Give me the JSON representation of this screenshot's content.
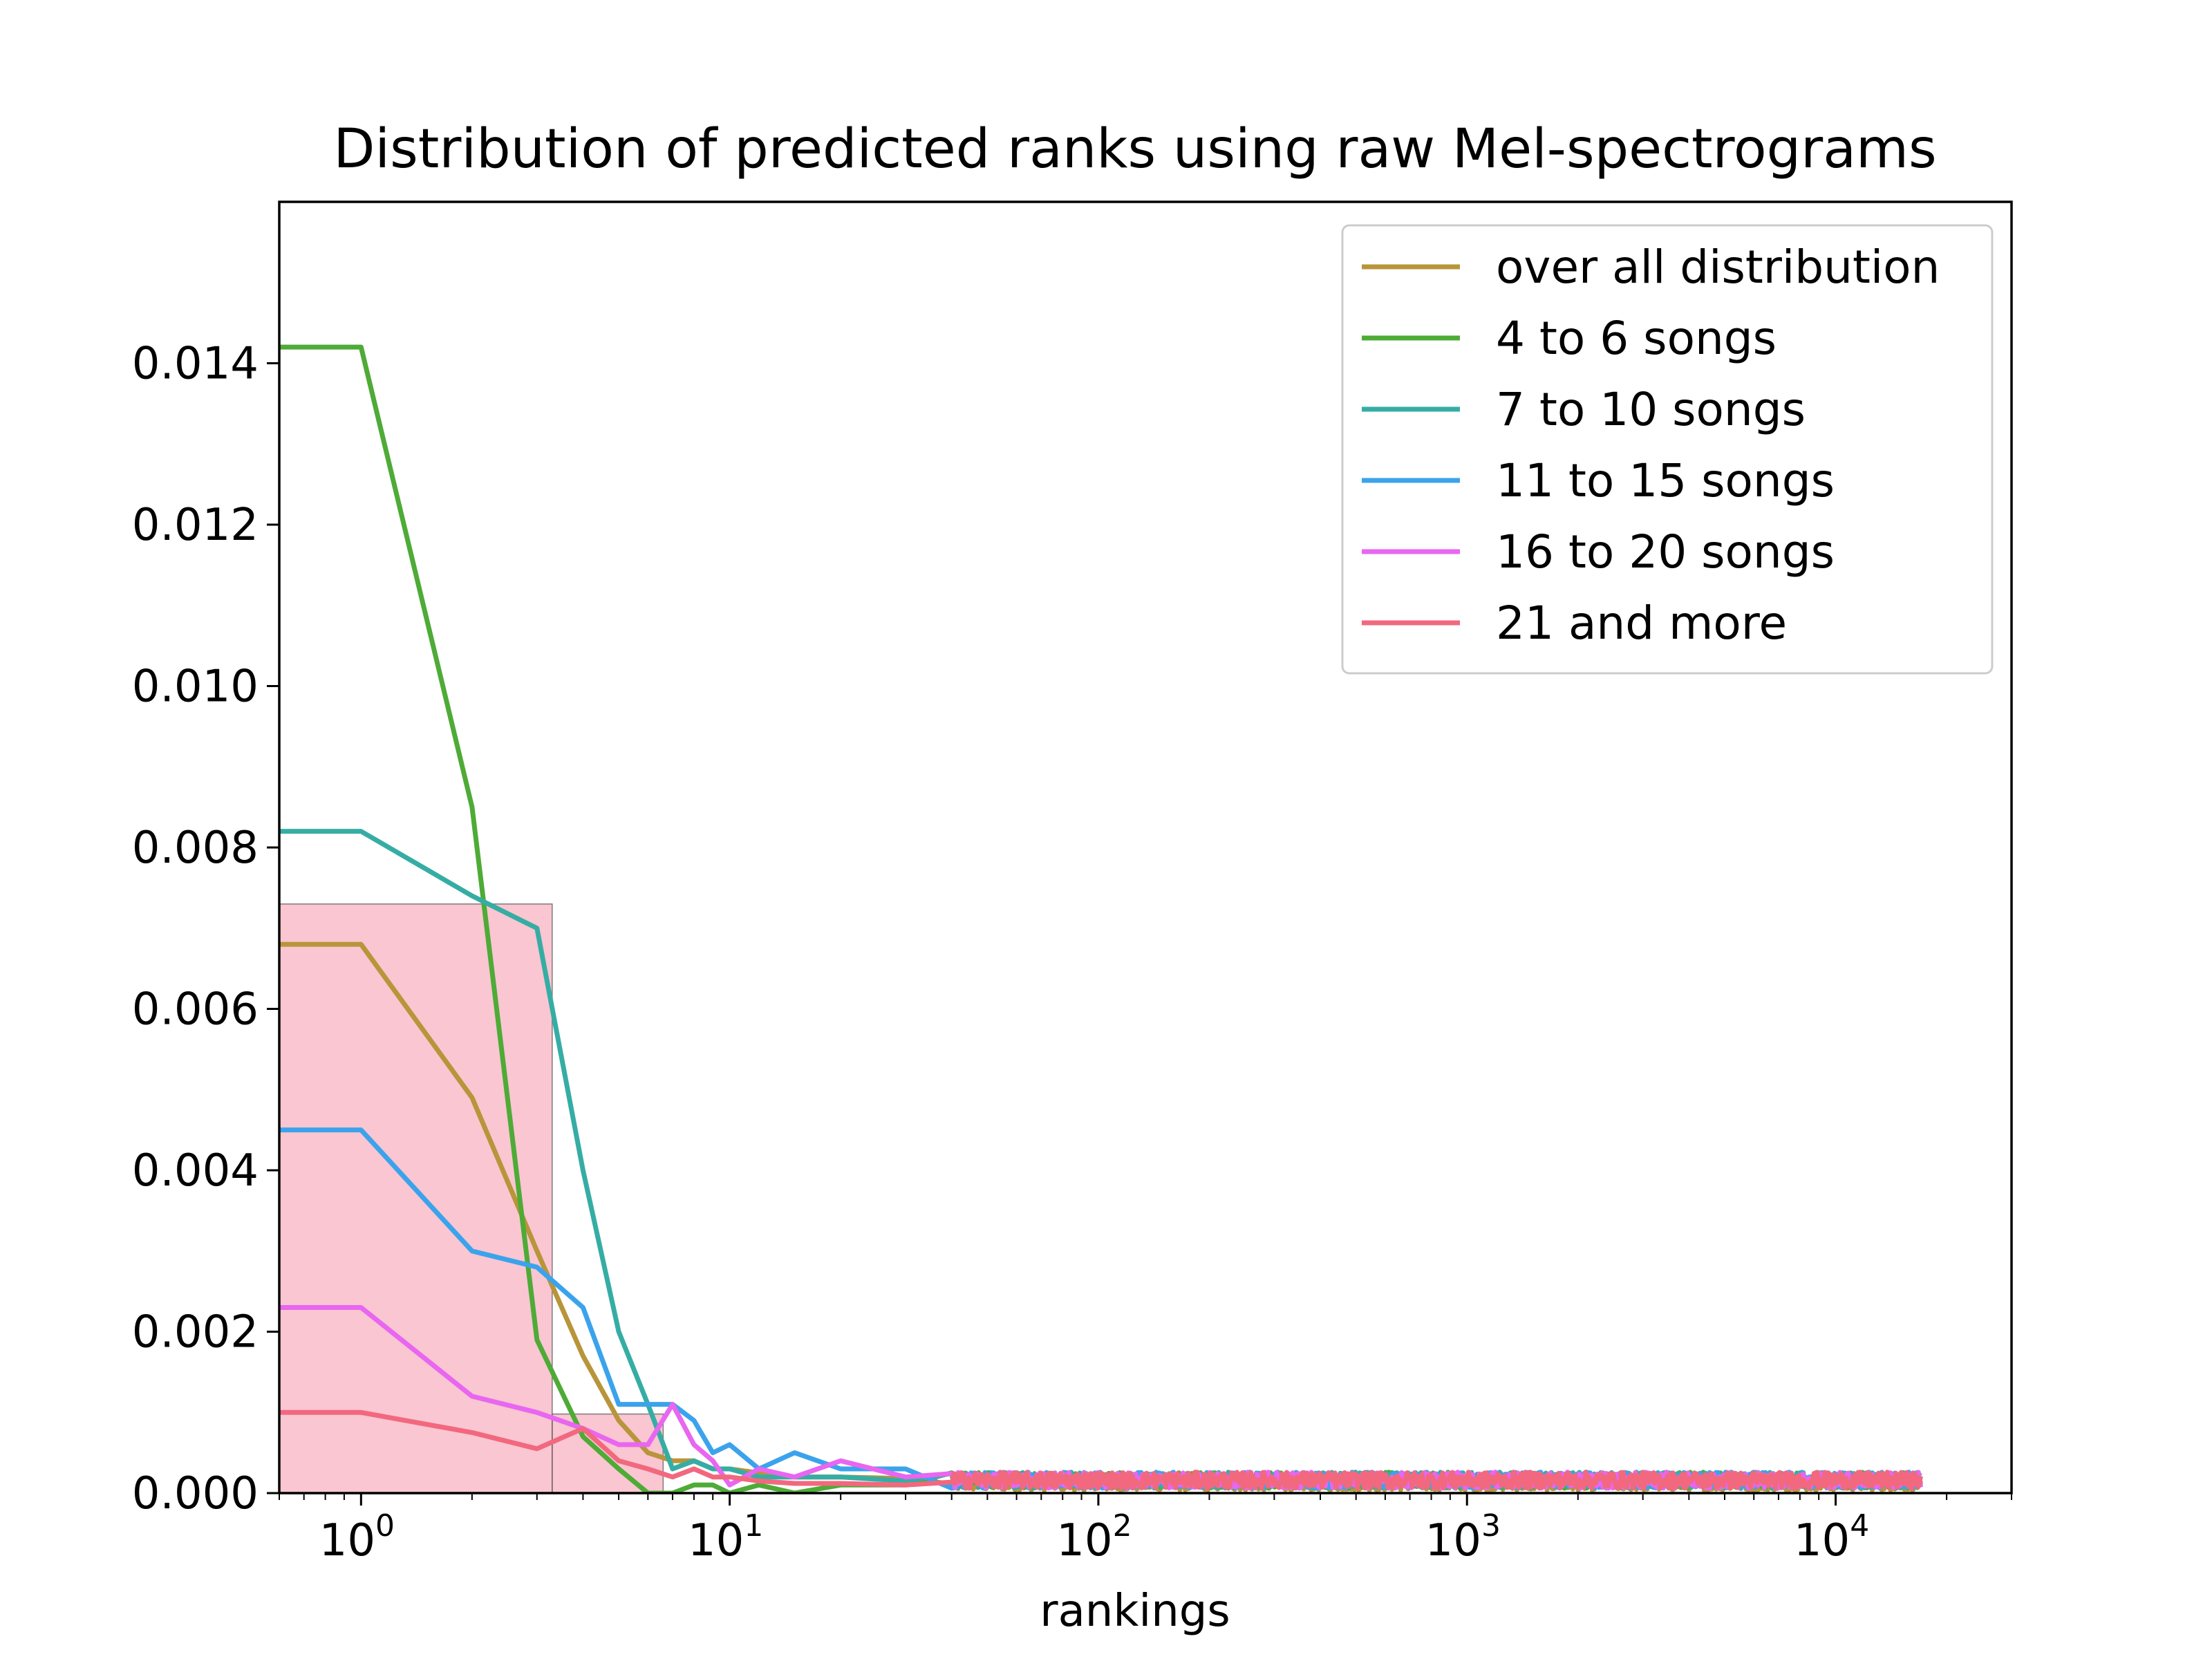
{
  "chart_data": {
    "type": "line",
    "title": "Distribution of predicted ranks using raw Mel-spectrograms",
    "xlabel": "rankings",
    "ylabel": "",
    "xscale": "log",
    "xlim": [
      0.6,
      30000
    ],
    "ylim": [
      0,
      0.016
    ],
    "grid": false,
    "legend_position": "upper-right",
    "x_tick_labels": [
      {
        "value": 1,
        "base": "10",
        "exp": "0"
      },
      {
        "value": 10,
        "base": "10",
        "exp": "1"
      },
      {
        "value": 100,
        "base": "10",
        "exp": "2"
      },
      {
        "value": 1000,
        "base": "10",
        "exp": "3"
      },
      {
        "value": 10000,
        "base": "10",
        "exp": "4"
      }
    ],
    "y_ticks": [
      0,
      0.002,
      0.004,
      0.006,
      0.008,
      0.01,
      0.012,
      0.014
    ],
    "y_tick_labels": [
      "0.000",
      "0.002",
      "0.004",
      "0.006",
      "0.008",
      "0.010",
      "0.012",
      "0.014"
    ],
    "histogram": {
      "color": "#f5a3b5",
      "bins": [
        {
          "x0": 0.6,
          "x1": 3.3,
          "value": 0.0073
        },
        {
          "x0": 3.3,
          "x1": 6.6,
          "value": 0.00098
        }
      ]
    },
    "tail": {
      "x_start": 40,
      "x_end": 17000,
      "noise_max": 0.0004
    },
    "series": [
      {
        "name": "over all distribution",
        "color": "#b8953a",
        "x": [
          0.6,
          1,
          2,
          3,
          4,
          5,
          6,
          7,
          8,
          9,
          10,
          12,
          15,
          20,
          30
        ],
        "y": [
          0.0068,
          0.0068,
          0.0049,
          0.003,
          0.0017,
          0.0009,
          0.0005,
          0.0004,
          0.0004,
          0.0003,
          0.0003,
          0.00025,
          0.0002,
          0.0002,
          0.00018
        ]
      },
      {
        "name": "4 to 6 songs",
        "color": "#4eab36",
        "x": [
          0.6,
          1,
          2,
          3,
          4,
          5,
          6,
          7,
          8,
          9,
          10,
          12,
          15,
          20,
          30
        ],
        "y": [
          0.0142,
          0.0142,
          0.0085,
          0.0019,
          0.0007,
          0.0003,
          0.0,
          0.0,
          0.0001,
          0.0001,
          0.0,
          0.0001,
          0.0,
          0.0001,
          0.0001
        ]
      },
      {
        "name": "7 to 10 songs",
        "color": "#36ada4",
        "x": [
          0.6,
          1,
          2,
          3,
          4,
          5,
          6,
          7,
          8,
          9,
          10,
          12,
          15,
          20,
          30
        ],
        "y": [
          0.0082,
          0.0082,
          0.0074,
          0.007,
          0.004,
          0.002,
          0.0011,
          0.0003,
          0.0004,
          0.0003,
          0.0003,
          0.0002,
          0.0002,
          0.0002,
          0.00015
        ]
      },
      {
        "name": "11 to 15 songs",
        "color": "#3ba3ec",
        "x": [
          0.6,
          1,
          2,
          3,
          4,
          5,
          6,
          7,
          8,
          9,
          10,
          12,
          15,
          20,
          30
        ],
        "y": [
          0.0045,
          0.0045,
          0.003,
          0.0028,
          0.0023,
          0.0011,
          0.0011,
          0.0011,
          0.0009,
          0.0005,
          0.0006,
          0.0003,
          0.0005,
          0.0003,
          0.0003
        ]
      },
      {
        "name": "16 to 20 songs",
        "color": "#e866f0",
        "x": [
          0.6,
          1,
          2,
          3,
          4,
          5,
          6,
          7,
          8,
          9,
          10,
          12,
          15,
          20,
          30
        ],
        "y": [
          0.0023,
          0.0023,
          0.0012,
          0.001,
          0.0008,
          0.0006,
          0.0006,
          0.0011,
          0.0006,
          0.0004,
          0.0001,
          0.0003,
          0.0002,
          0.0004,
          0.0002
        ]
      },
      {
        "name": "21 and more",
        "color": "#f2687e",
        "x": [
          0.6,
          1,
          2,
          3,
          4,
          5,
          6,
          7,
          8,
          9,
          10,
          12,
          15,
          20,
          30
        ],
        "y": [
          0.001,
          0.001,
          0.00075,
          0.00055,
          0.0008,
          0.0004,
          0.0003,
          0.0002,
          0.0003,
          0.0002,
          0.0002,
          0.00015,
          0.00012,
          0.00012,
          0.0001
        ]
      }
    ]
  }
}
